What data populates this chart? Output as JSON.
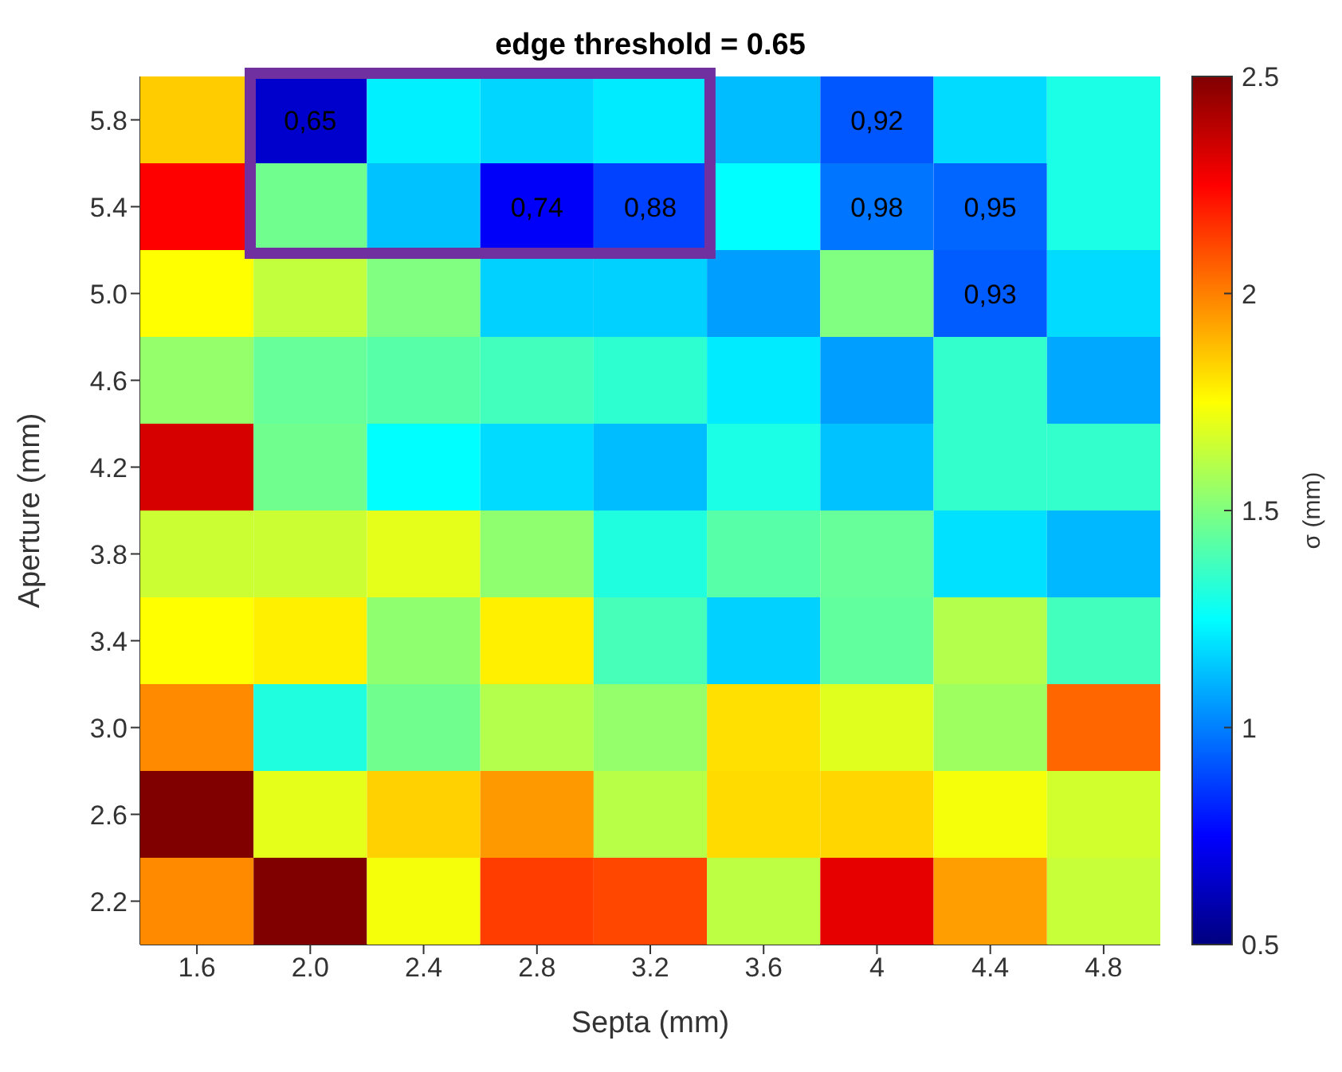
{
  "chart_data": {
    "type": "heatmap",
    "title": "edge threshold = 0.65",
    "xlabel": "Septa (mm)",
    "ylabel": "Aperture (mm)",
    "clabel": "σ (mm)",
    "categories": [
      "1.6",
      "2.0",
      "2.4",
      "2.8",
      "3.2",
      "3.6",
      "4",
      "4.4",
      "4.8"
    ],
    "y_categories": [
      "5.8",
      "5.4",
      "5.0",
      "4.6",
      "4.2",
      "3.8",
      "3.4",
      "3.0",
      "2.6",
      "2.2"
    ],
    "cells": [
      [
        1.85,
        0.65,
        1.22,
        1.17,
        1.21,
        1.12,
        0.92,
        1.18,
        1.3
      ],
      [
        2.25,
        1.47,
        1.13,
        0.74,
        0.88,
        1.25,
        0.98,
        0.95,
        1.3
      ],
      [
        1.75,
        1.63,
        1.5,
        1.16,
        1.16,
        1.06,
        1.5,
        0.93,
        1.18
      ],
      [
        1.54,
        1.45,
        1.42,
        1.38,
        1.34,
        1.21,
        1.06,
        1.35,
        1.08
      ],
      [
        2.33,
        1.47,
        1.25,
        1.18,
        1.12,
        1.3,
        1.13,
        1.35,
        1.35
      ],
      [
        1.65,
        1.65,
        1.7,
        1.53,
        1.31,
        1.42,
        1.45,
        1.19,
        1.11
      ],
      [
        1.75,
        1.78,
        1.53,
        1.78,
        1.39,
        1.16,
        1.44,
        1.6,
        1.38
      ],
      [
        1.98,
        1.31,
        1.47,
        1.6,
        1.54,
        1.81,
        1.69,
        1.56,
        2.05
      ],
      [
        2.5,
        1.7,
        1.84,
        1.95,
        1.61,
        1.82,
        1.83,
        1.73,
        1.66
      ],
      [
        1.98,
        2.5,
        1.73,
        2.13,
        2.11,
        1.62,
        2.3,
        1.94,
        1.64
      ]
    ],
    "cell_labels": [
      [
        null,
        "0,65",
        null,
        null,
        null,
        null,
        "0,92",
        null,
        null
      ],
      [
        null,
        null,
        null,
        "0,74",
        "0,88",
        null,
        "0,98",
        "0,95",
        null
      ],
      [
        null,
        null,
        null,
        null,
        null,
        null,
        null,
        "0,93",
        null
      ],
      [
        null,
        null,
        null,
        null,
        null,
        null,
        null,
        null,
        null
      ],
      [
        null,
        null,
        null,
        null,
        null,
        null,
        null,
        null,
        null
      ],
      [
        null,
        null,
        null,
        null,
        null,
        null,
        null,
        null,
        null
      ],
      [
        null,
        null,
        null,
        null,
        null,
        null,
        null,
        null,
        null
      ],
      [
        null,
        null,
        null,
        null,
        null,
        null,
        null,
        null,
        null
      ],
      [
        null,
        null,
        null,
        null,
        null,
        null,
        null,
        null,
        null
      ],
      [
        null,
        null,
        null,
        null,
        null,
        null,
        null,
        null,
        null
      ]
    ],
    "clim": [
      0.5,
      2.5
    ],
    "cticks": [
      0.5,
      1,
      1.5,
      2,
      2.5
    ]
  }
}
